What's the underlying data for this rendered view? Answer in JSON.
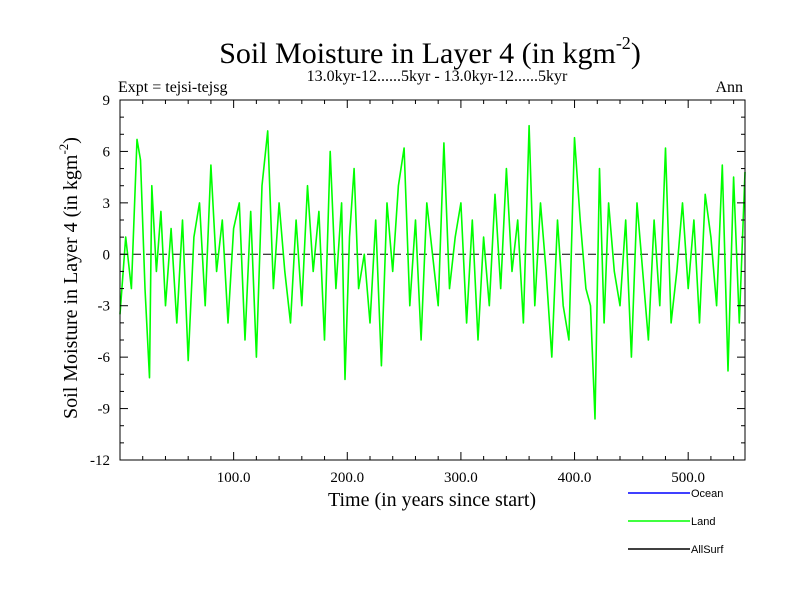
{
  "chart_data": {
    "type": "line",
    "title": "Soil Moisture in Layer 4 (in kgm",
    "title_sup": "-2",
    "title_close": ")",
    "subtitle_left": "Expt = tejsi-tejsg",
    "subtitle_center": "13.0kyr-12......5kyr - 13.0kyr-12......5kyr",
    "subtitle_right": "Ann",
    "xlabel": "Time (in years since start)",
    "ylabel": "Soil Moisture in Layer 4 (in kgm",
    "ylabel_sup": "-2",
    "ylabel_close": ")",
    "xlim": [
      0,
      550
    ],
    "ylim": [
      -12,
      9
    ],
    "xticks": [
      100,
      200,
      300,
      400,
      500
    ],
    "xtick_labels": [
      "100.0",
      "200.0",
      "300.0",
      "400.0",
      "500.0"
    ],
    "yticks": [
      9,
      6,
      3,
      0,
      -3,
      -6,
      -9,
      -12
    ],
    "ytick_labels": [
      "9",
      "6",
      "3",
      "0",
      "-3",
      "-6",
      "-9",
      "-12"
    ],
    "zero_line": "dashed",
    "legend": [
      {
        "name": "Ocean",
        "color": "#0000ff"
      },
      {
        "name": "Land",
        "color": "#00ff00"
      },
      {
        "name": "AllSurf",
        "color": "#000000"
      }
    ],
    "series": [
      {
        "name": "Land",
        "color": "#00ff00",
        "x": [
          0,
          5,
          10,
          15,
          18,
          22,
          26,
          28,
          32,
          36,
          40,
          45,
          50,
          55,
          60,
          65,
          70,
          75,
          80,
          85,
          90,
          95,
          100,
          105,
          110,
          115,
          120,
          125,
          130,
          135,
          140,
          145,
          150,
          155,
          160,
          165,
          170,
          175,
          180,
          185,
          190,
          195,
          198,
          202,
          206,
          210,
          215,
          220,
          225,
          230,
          235,
          240,
          245,
          250,
          255,
          260,
          265,
          270,
          275,
          280,
          285,
          290,
          295,
          300,
          305,
          310,
          315,
          320,
          325,
          330,
          335,
          340,
          345,
          350,
          355,
          360,
          365,
          370,
          375,
          380,
          385,
          390,
          395,
          400,
          405,
          410,
          414,
          418,
          422,
          426,
          430,
          435,
          440,
          445,
          450,
          455,
          460,
          465,
          470,
          475,
          480,
          485,
          490,
          495,
          500,
          505,
          510,
          515,
          520,
          525,
          530,
          535,
          540,
          545,
          550
        ],
        "y": [
          -3.5,
          1,
          -2,
          6.7,
          5.5,
          -2,
          -7.2,
          4,
          -1,
          2.5,
          -3,
          1.5,
          -4,
          2,
          -6.2,
          1,
          3,
          -3,
          5.2,
          -1,
          2,
          -4,
          1.5,
          3,
          -5,
          2.5,
          -6,
          4,
          7.2,
          -2,
          3,
          -1,
          -4,
          2,
          -3,
          4,
          -1,
          2.5,
          -5,
          6,
          -2,
          3,
          -7.3,
          1,
          5,
          -2,
          0,
          -4,
          2,
          -6.5,
          3,
          -1,
          4,
          6.2,
          -3,
          2,
          -5,
          3,
          0,
          -3,
          6.5,
          -2,
          1,
          3,
          -4,
          2,
          -5,
          1,
          -3,
          3.5,
          -2,
          5,
          -1,
          2,
          -4,
          7.5,
          -3,
          3,
          -1,
          -6,
          2,
          -3,
          -5,
          6.8,
          2,
          -2,
          -3,
          -9.6,
          5,
          -4,
          3,
          -1,
          -3,
          2,
          -6,
          3,
          -1,
          -5,
          2,
          -3,
          6.2,
          -4,
          -1,
          3,
          -2,
          2,
          -4,
          3.5,
          1,
          -3,
          5.2,
          -6.8,
          4.5,
          -4,
          4.8
        ]
      }
    ]
  }
}
